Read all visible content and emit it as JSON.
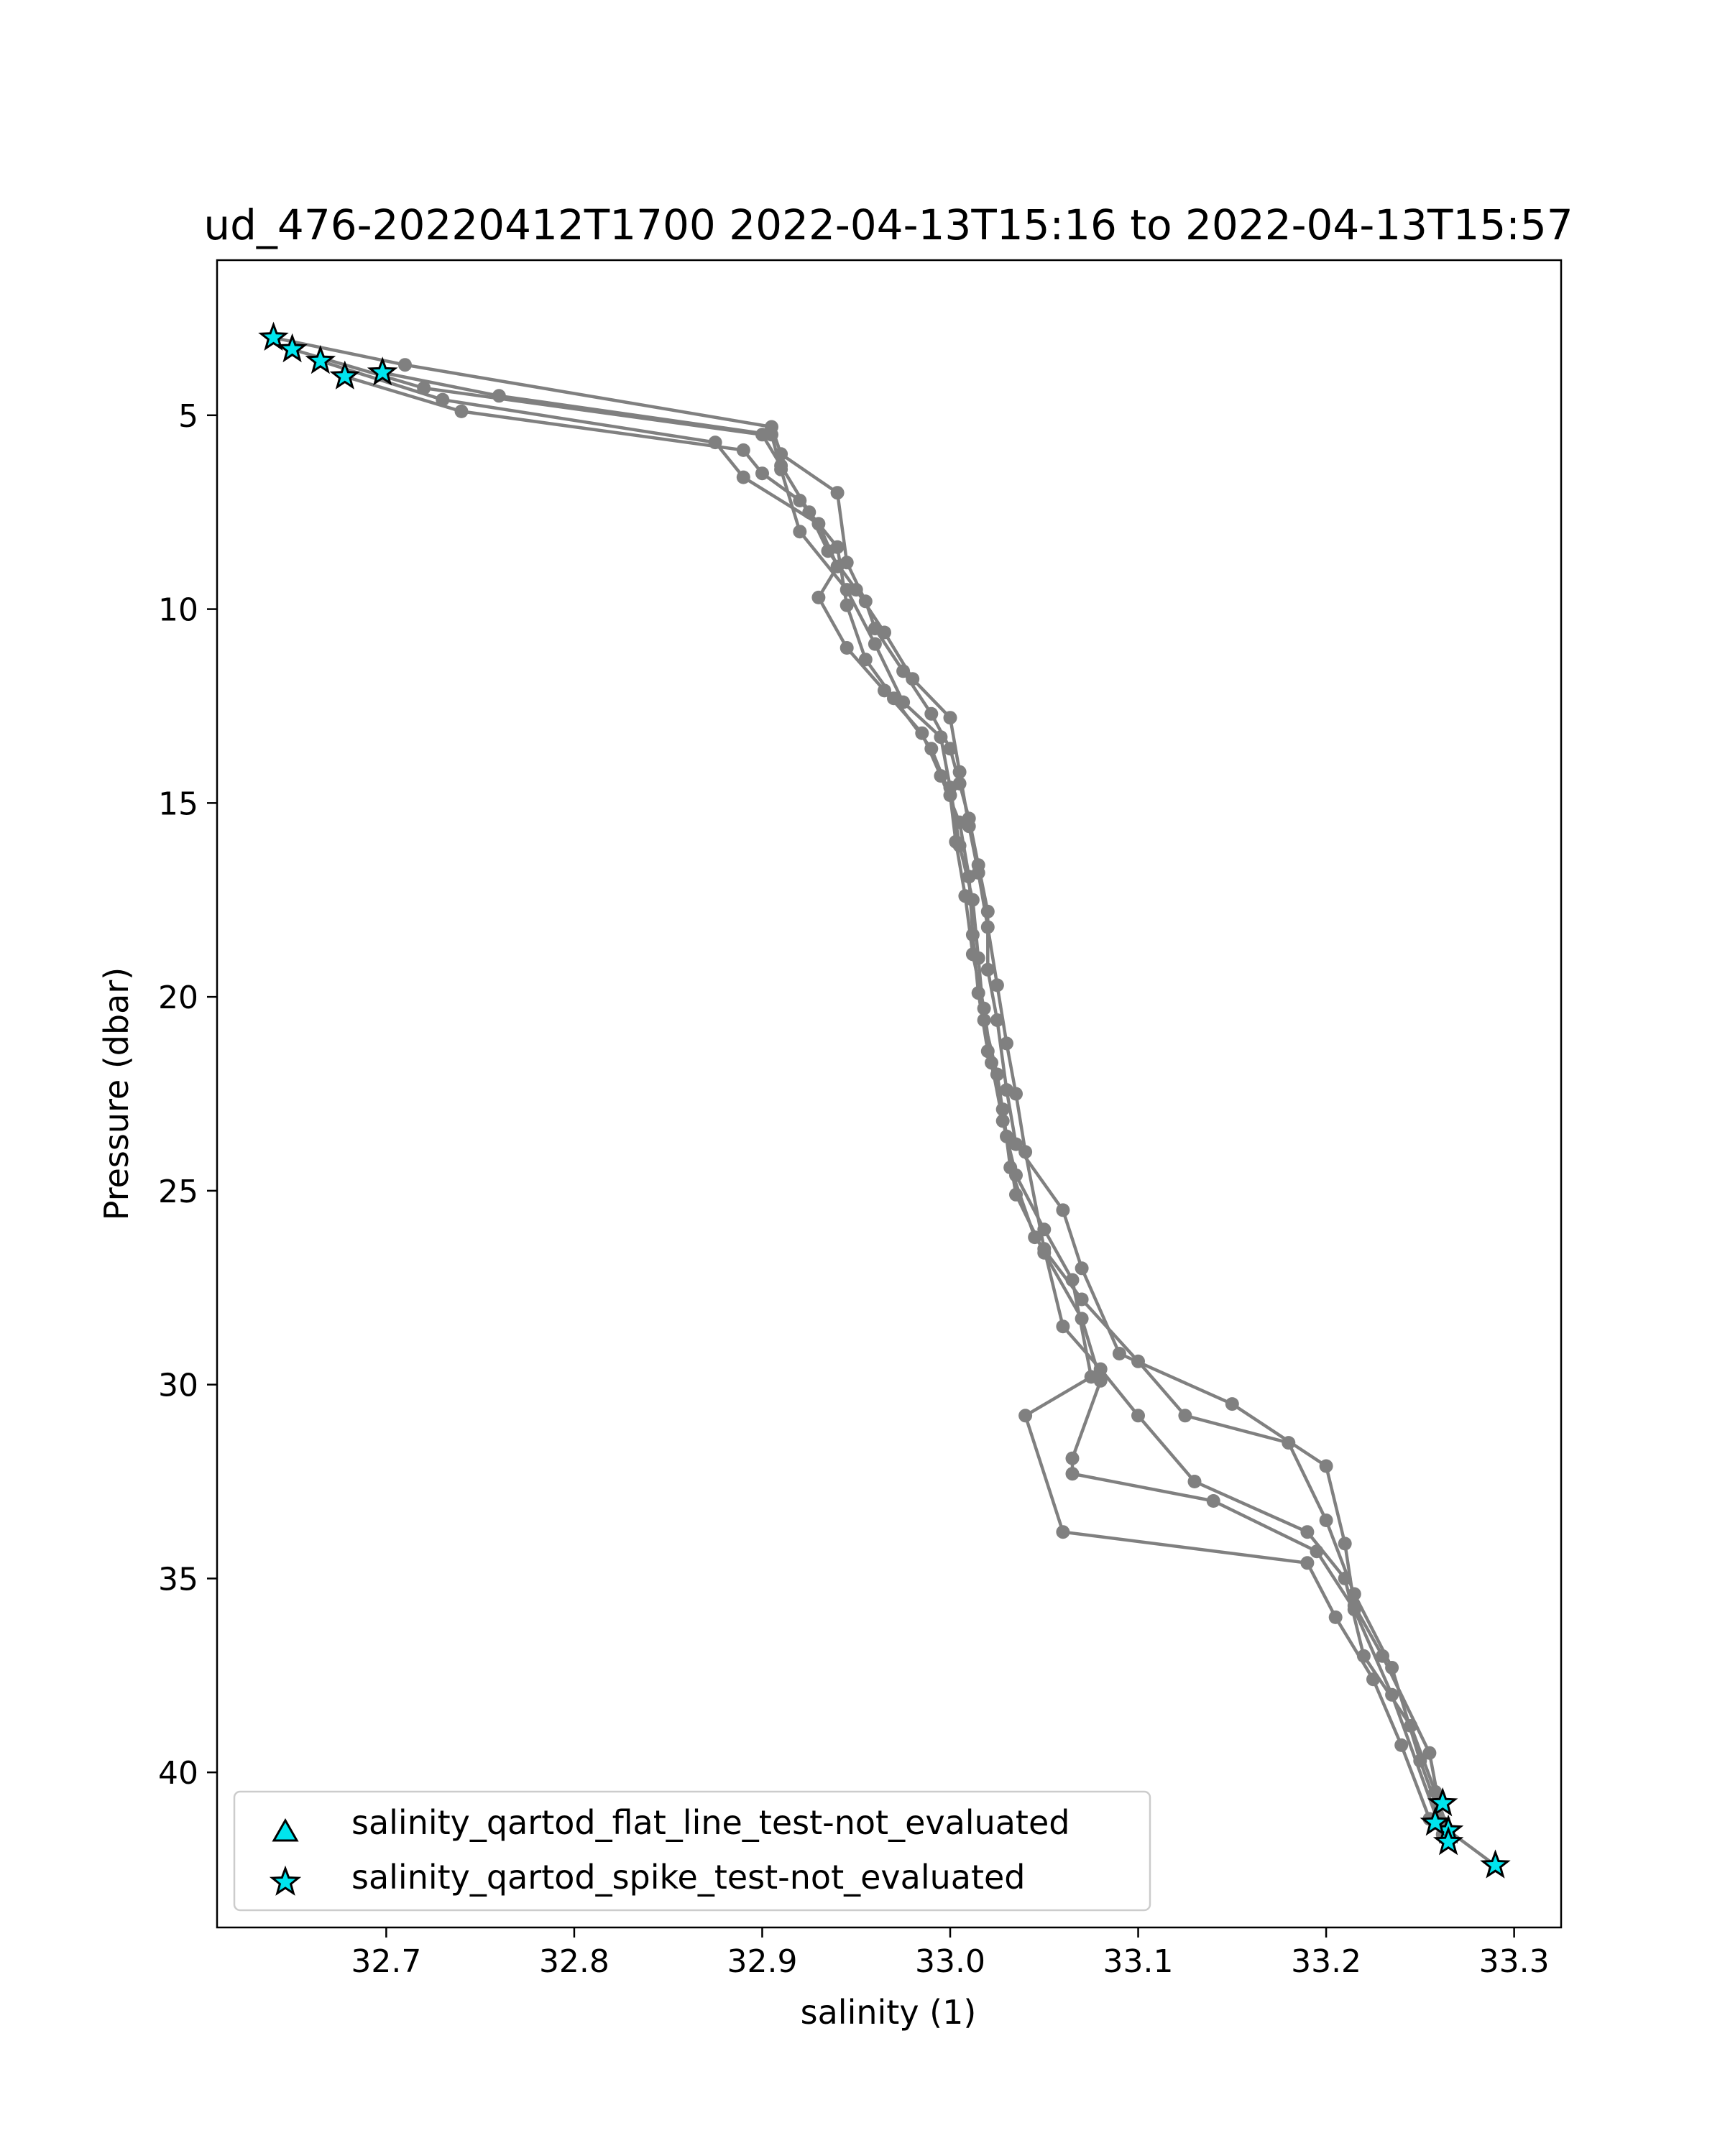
{
  "chart_data": {
    "type": "line",
    "title": "ud_476-20220412T1700 2022-04-13T15:16 to 2022-04-13T15:57",
    "xlabel": "salinity (1)",
    "ylabel": "Pressure (dbar)",
    "xlim": [
      32.61,
      33.325
    ],
    "ylim": [
      44.0,
      1.0
    ],
    "y_inverted": true,
    "x_ticks": [
      32.7,
      32.8,
      32.9,
      33.0,
      33.1,
      33.2,
      33.3
    ],
    "x_tick_labels": [
      "32.7",
      "32.8",
      "32.9",
      "33.0",
      "33.1",
      "33.2",
      "33.3"
    ],
    "y_ticks": [
      5,
      10,
      15,
      20,
      25,
      30,
      35,
      40
    ],
    "y_tick_labels": [
      "5",
      "10",
      "15",
      "20",
      "25",
      "30",
      "35",
      "40"
    ],
    "grid": false,
    "legend_position": "lower-left",
    "colors": {
      "profile": "#808080",
      "flag_fill": "#00e5ee",
      "flag_edge": "#000000"
    },
    "series": [
      {
        "color": "#808080",
        "marker": "circle",
        "x": [
          32.64,
          32.71,
          32.905,
          32.91,
          32.94,
          32.945,
          32.955,
          32.96,
          32.975,
          32.99,
          33.0,
          33.005,
          33.01,
          33.015,
          33.02,
          33.02,
          33.025,
          33.03,
          33.035,
          33.06,
          33.07,
          33.09,
          33.15,
          33.2,
          33.21,
          33.215,
          33.23,
          33.255,
          33.26,
          33.265,
          33.29
        ],
        "y": [
          3.0,
          3.7,
          5.3,
          6.0,
          7.0,
          8.8,
          9.8,
          10.5,
          11.6,
          12.7,
          13.6,
          14.5,
          15.4,
          16.6,
          17.8,
          19.3,
          20.6,
          22.4,
          23.8,
          25.5,
          27.0,
          29.2,
          30.5,
          32.1,
          34.1,
          35.7,
          37.0,
          39.5,
          40.8,
          41.5,
          42.4
        ]
      },
      {
        "color": "#808080",
        "marker": "circle",
        "x": [
          32.65,
          32.72,
          32.9,
          32.91,
          32.925,
          32.935,
          32.95,
          32.965,
          32.98,
          33.0,
          33.005,
          33.01,
          33.015,
          33.02,
          33.025,
          33.03,
          33.035,
          33.04,
          33.05,
          33.06,
          33.08,
          33.1,
          33.13,
          33.19,
          33.21,
          33.22,
          33.245,
          33.258,
          33.265
        ],
        "y": [
          3.3,
          4.3,
          5.5,
          6.3,
          7.5,
          8.5,
          9.5,
          10.6,
          11.8,
          12.8,
          14.2,
          15.6,
          16.8,
          18.2,
          19.7,
          21.2,
          22.5,
          24.0,
          26.5,
          28.5,
          29.6,
          30.8,
          32.5,
          33.8,
          35.0,
          37.0,
          38.8,
          40.5,
          41.8
        ]
      },
      {
        "color": "#808080",
        "marker": "circle",
        "x": [
          32.665,
          32.73,
          32.875,
          32.89,
          32.93,
          32.94,
          32.93,
          32.945,
          32.965,
          32.985,
          32.995,
          33.005,
          33.01,
          33.012,
          33.015,
          33.02,
          33.028,
          33.032,
          33.045,
          33.07,
          33.1,
          33.125,
          33.18,
          33.2,
          33.215,
          33.235,
          33.25,
          33.262
        ],
        "y": [
          3.6,
          4.6,
          5.7,
          6.6,
          7.8,
          8.9,
          9.7,
          11.0,
          12.1,
          13.2,
          14.3,
          15.5,
          16.9,
          18.4,
          19.9,
          21.4,
          22.9,
          24.4,
          26.2,
          27.8,
          29.4,
          30.8,
          31.5,
          33.5,
          35.4,
          37.3,
          39.7,
          41.3
        ]
      },
      {
        "color": "#808080",
        "marker": "circle",
        "x": [
          32.678,
          32.74,
          32.89,
          32.9,
          32.92,
          32.94,
          32.945,
          32.955,
          32.97,
          32.99,
          33.0,
          33.003,
          33.008,
          33.012,
          33.018,
          33.022,
          33.028,
          33.035,
          33.05,
          33.065,
          33.075,
          33.04,
          33.06,
          33.19,
          33.205,
          33.225,
          33.24,
          33.255
        ],
        "y": [
          4.0,
          4.9,
          5.9,
          6.5,
          7.2,
          8.4,
          9.9,
          11.3,
          12.3,
          13.6,
          14.8,
          16.0,
          17.4,
          18.9,
          20.3,
          21.7,
          23.2,
          24.6,
          26.0,
          27.3,
          29.8,
          30.8,
          33.8,
          34.6,
          36.0,
          37.6,
          39.3,
          41.2
        ]
      },
      {
        "color": "#808080",
        "marker": "circle",
        "x": [
          32.698,
          32.76,
          32.905,
          32.91,
          32.92,
          32.945,
          32.96,
          32.975,
          32.995,
          33.0,
          33.005,
          33.012,
          33.015,
          33.018,
          33.025,
          33.03,
          33.035,
          33.05,
          33.07,
          33.08,
          33.065,
          33.065,
          33.14,
          33.195,
          33.215,
          33.235,
          33.262
        ],
        "y": [
          3.9,
          4.5,
          5.5,
          6.4,
          8.0,
          9.5,
          10.9,
          12.4,
          13.3,
          14.6,
          16.1,
          17.5,
          19.0,
          20.6,
          22.0,
          23.6,
          25.1,
          26.6,
          28.3,
          29.9,
          31.9,
          32.3,
          33.0,
          34.3,
          35.8,
          38.0,
          41.6
        ]
      }
    ],
    "flagged_series": [
      {
        "name": "salinity_qartod_flat_line_test-not_evaluated",
        "marker": "triangle",
        "x": [],
        "y": []
      },
      {
        "name": "salinity_qartod_spike_test-not_evaluated",
        "marker": "star",
        "x": [
          32.64,
          32.65,
          32.665,
          32.678,
          32.698,
          33.262,
          33.265,
          33.258,
          33.265,
          33.29
        ],
        "y": [
          3.0,
          3.3,
          3.6,
          4.0,
          3.9,
          40.8,
          41.5,
          41.3,
          41.8,
          42.4
        ]
      }
    ]
  }
}
